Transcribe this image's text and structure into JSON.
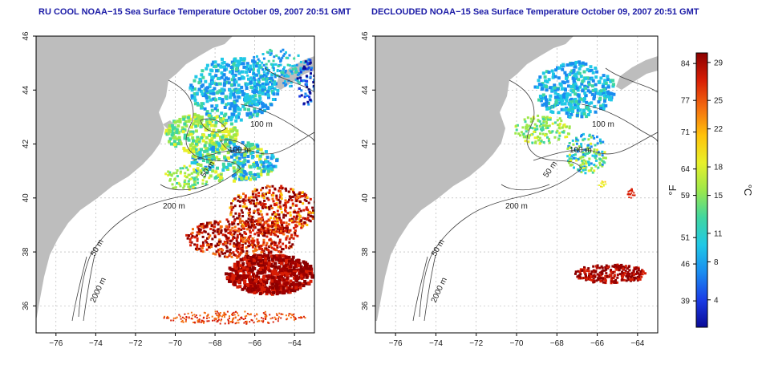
{
  "titles": {
    "left": "RU COOL NOAA−15 Sea Surface Temperature October 09, 2007 20:51 GMT",
    "right": "DECLOUDED NOAA−15 Sea Surface Temperature October 09, 2007 20:51 GMT"
  },
  "colorbar": {
    "left_unit": "°F",
    "right_unit": "°C",
    "fahrenheit_ticks": [
      "84",
      "77",
      "71",
      "64",
      "59",
      "51",
      "46",
      "39"
    ],
    "celsius_ticks": [
      "29",
      "25",
      "22",
      "18",
      "15",
      "11",
      "8",
      "4"
    ],
    "colors": [
      "#8b0000",
      "#d81e05",
      "#f46d0f",
      "#ffc20a",
      "#e8f02a",
      "#9de84a",
      "#40d6a0",
      "#20c8e6",
      "#1a8cf0",
      "#1a3ce6",
      "#0a0a96"
    ]
  },
  "chart_data": [
    {
      "type": "heatmap",
      "title": "RU COOL NOAA−15 Sea Surface Temperature October 09, 2007 20:51 GMT",
      "xlabel": "",
      "ylabel": "",
      "xlim": [
        -77,
        -63
      ],
      "ylim": [
        35,
        46
      ],
      "x_ticks": [
        -76,
        -74,
        -72,
        -70,
        -68,
        -66,
        -64
      ],
      "y_ticks": [
        36,
        38,
        40,
        42,
        44,
        46
      ],
      "grid": true,
      "contour_labels": [
        "100 m",
        "100 m",
        "50 m",
        "200 m",
        "50 m",
        "2000 m"
      ],
      "value_range_f": [
        34,
        86
      ]
    },
    {
      "type": "heatmap",
      "title": "DECLOUDED NOAA−15 Sea Surface Temperature October 09, 2007 20:51 GMT",
      "xlabel": "",
      "ylabel": "",
      "xlim": [
        -77,
        -63
      ],
      "ylim": [
        35,
        46
      ],
      "x_ticks": [
        -76,
        -74,
        -72,
        -70,
        -68,
        -66,
        -64
      ],
      "y_ticks": [
        36,
        38,
        40,
        42,
        44,
        46
      ],
      "grid": true,
      "contour_labels": [
        "100 m",
        "100 m",
        "50 m",
        "200 m",
        "50 m",
        "2000 m"
      ],
      "value_range_f": [
        34,
        86
      ]
    }
  ]
}
